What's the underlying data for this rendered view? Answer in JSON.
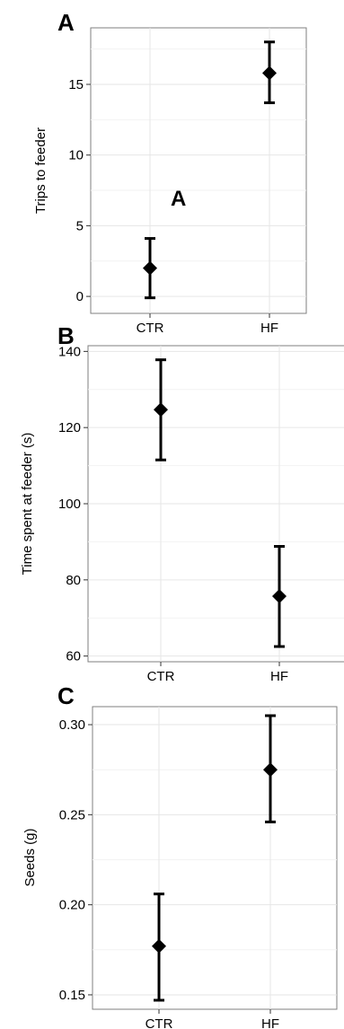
{
  "figure": {
    "inner_annotation": "A"
  },
  "chart_data": [
    {
      "type": "scatter",
      "panel_label": "A",
      "xlabel": "",
      "ylabel": "Trips to feeder",
      "categories": [
        "CTR",
        "HF"
      ],
      "ylim": [
        -1.2,
        19.0
      ],
      "yticks": [
        0,
        5,
        10,
        15
      ],
      "grid": true,
      "series": [
        {
          "marker": "diamond",
          "color": "#000000",
          "values": [
            2.0,
            15.8
          ],
          "error_low": [
            -0.1,
            13.7
          ],
          "error_high": [
            4.1,
            18.0
          ]
        }
      ]
    },
    {
      "type": "scatter",
      "panel_label": "B",
      "xlabel": "",
      "ylabel": "Time spent at feeder (s)",
      "categories": [
        "CTR",
        "HF"
      ],
      "ylim": [
        58.5,
        141.5
      ],
      "yticks": [
        60,
        80,
        100,
        120,
        140
      ],
      "grid": true,
      "series": [
        {
          "marker": "diamond",
          "color": "#000000",
          "values": [
            124.7,
            75.7
          ],
          "error_low": [
            111.5,
            62.5
          ],
          "error_high": [
            137.8,
            88.8
          ]
        }
      ]
    },
    {
      "type": "scatter",
      "panel_label": "C",
      "xlabel": "",
      "ylabel": "Seeds (g)",
      "categories": [
        "CTR",
        "HF"
      ],
      "ylim": [
        0.142,
        0.31
      ],
      "yticks": [
        0.15,
        0.2,
        0.25,
        0.3
      ],
      "ytick_labels": [
        "0.15",
        "0.20",
        "0.25",
        "0.30"
      ],
      "grid": true,
      "series": [
        {
          "marker": "diamond",
          "color": "#000000",
          "values": [
            0.177,
            0.275
          ],
          "error_low": [
            0.147,
            0.246
          ],
          "error_high": [
            0.206,
            0.305
          ]
        }
      ]
    }
  ]
}
